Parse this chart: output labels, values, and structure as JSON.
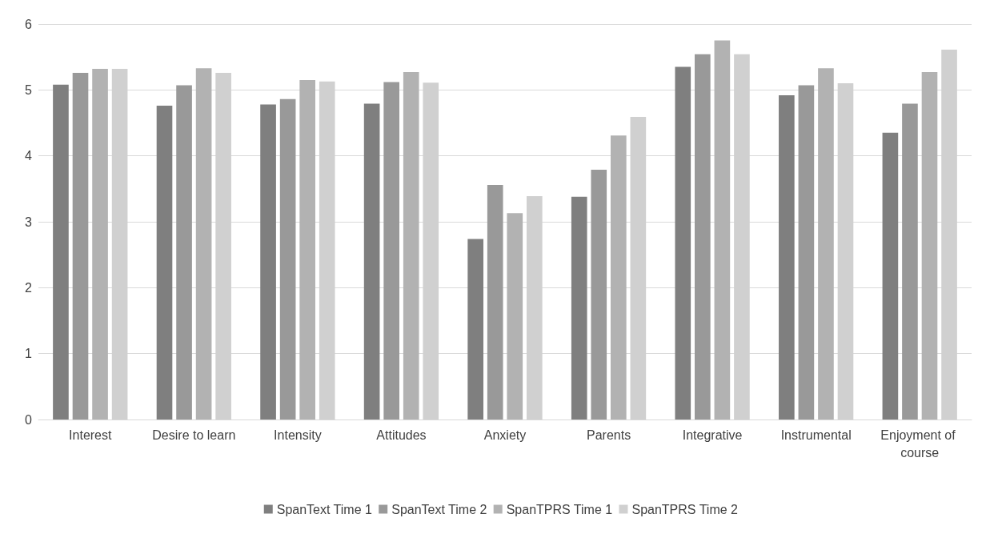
{
  "chart_data": {
    "type": "bar",
    "categories": [
      "Interest",
      "Desire to learn",
      "Intensity",
      "Attitudes",
      "Anxiety",
      "Parents",
      "Integrative",
      "Instrumental",
      "Enjoyment of course"
    ],
    "series": [
      {
        "name": "SpanText Time 1",
        "color": "#7f7f7f",
        "values": [
          5.08,
          4.76,
          4.78,
          4.79,
          2.74,
          3.38,
          5.35,
          4.92,
          4.35
        ]
      },
      {
        "name": "SpanText Time 2",
        "color": "#999999",
        "values": [
          5.26,
          5.07,
          4.86,
          5.12,
          3.56,
          3.79,
          5.54,
          5.07,
          4.79
        ]
      },
      {
        "name": "SpanTPRS Time 1",
        "color": "#b2b2b2",
        "values": [
          5.32,
          5.33,
          5.15,
          5.27,
          3.13,
          4.31,
          5.75,
          5.33,
          5.27
        ]
      },
      {
        "name": "SpanTPRS Time 2",
        "color": "#d0d0d0",
        "values": [
          5.32,
          5.26,
          5.13,
          5.11,
          3.39,
          4.59,
          5.54,
          5.1,
          5.61
        ]
      }
    ],
    "ylim": [
      0,
      6
    ],
    "yticks": [
      0,
      1,
      2,
      3,
      4,
      5,
      6
    ],
    "grid": "y",
    "legend": "bottom"
  }
}
